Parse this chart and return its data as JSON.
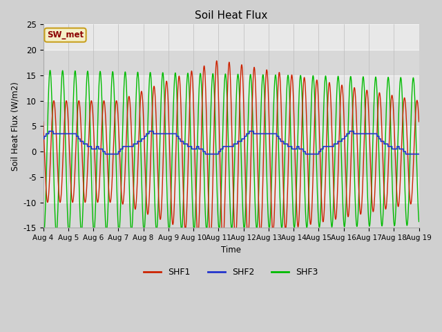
{
  "title": "Soil Heat Flux",
  "ylabel": "Soil Heat Flux (W/m2)",
  "xlabel": "Time",
  "ylim": [
    -15,
    25
  ],
  "fig_bg": "#d8d8d8",
  "plot_bg": "#e0e0e0",
  "legend_label": "SW_met",
  "legend_fg": "#8B0000",
  "legend_bg": "#f5f0c8",
  "legend_border": "#c8a020",
  "xtick_labels": [
    "Aug 4",
    "Aug 5",
    "Aug 6",
    "Aug 7",
    "Aug 8",
    "Aug 9",
    "Aug 10",
    "Aug 11",
    "Aug 12",
    "Aug 13",
    "Aug 14",
    "Aug 15",
    "Aug 16",
    "Aug 17",
    "Aug 18",
    "Aug 19"
  ],
  "series_labels": [
    "SHF1",
    "SHF2",
    "SHF3"
  ],
  "series_colors": [
    "#cc2200",
    "#2233cc",
    "#00bb00"
  ],
  "yticks": [
    -15,
    -10,
    -5,
    0,
    5,
    10,
    15,
    20,
    25
  ],
  "grid_color": "#f0f0f0",
  "alt_band_color": "#c8c8c8"
}
